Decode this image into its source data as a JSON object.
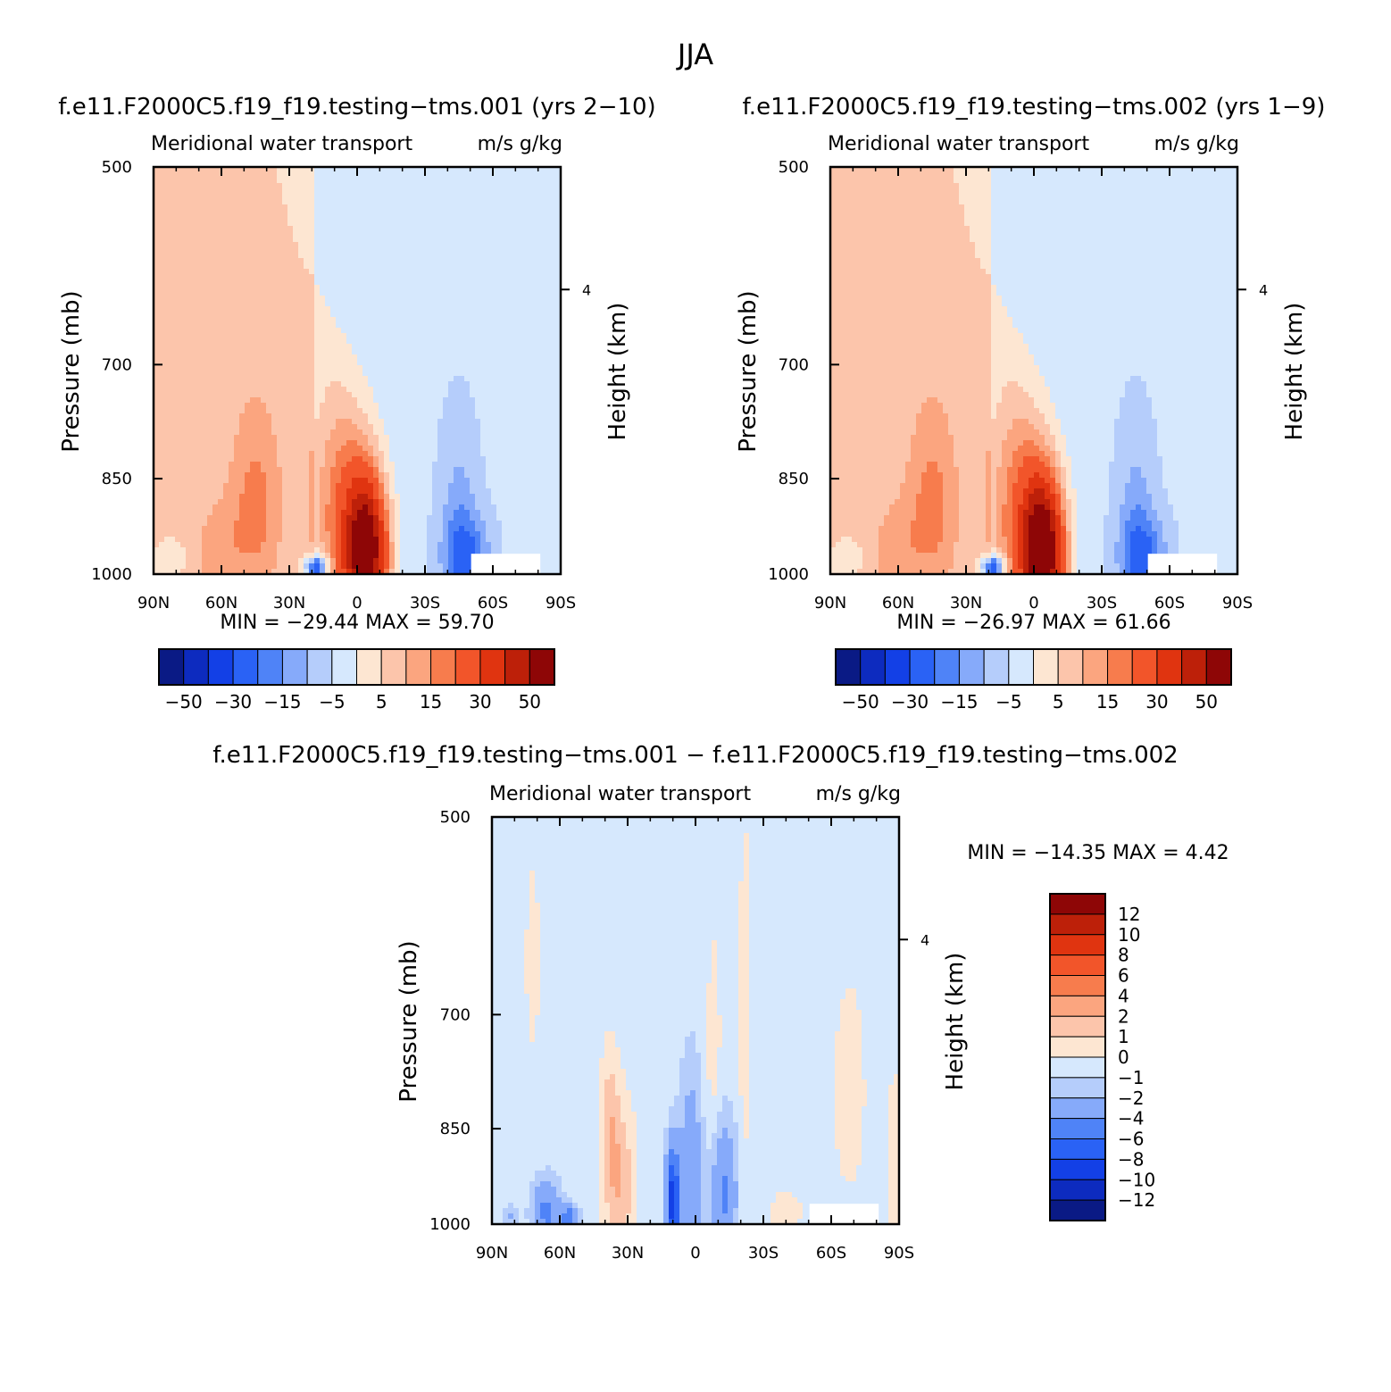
{
  "figure": {
    "title": "JJA"
  },
  "colors": {
    "levels_main": [
      "#0a1a85",
      "#0d2bbf",
      "#1340e6",
      "#2a62f5",
      "#4f83f7",
      "#86aafa",
      "#b5cdfb",
      "#d6e8fd",
      "#fde6d2",
      "#fcc5ab",
      "#fba57f",
      "#f77c4d",
      "#f2552a",
      "#e03410",
      "#bd2009",
      "#8e0606"
    ],
    "levels_diff": [
      "#0a1a85",
      "#0d2bbf",
      "#1340e6",
      "#2a62f5",
      "#4f83f7",
      "#86aafa",
      "#b5cdfb",
      "#d6e8fd",
      "#fde6d2",
      "#fcc5ab",
      "#fba57f",
      "#f77c4d",
      "#f2552a",
      "#e03410",
      "#bd2009",
      "#8e0606"
    ]
  },
  "chart_data": [
    {
      "type": "heatmap",
      "title": "f.e11.F2000C5.f19_f19.testing−tms.001 (yrs 2−10)",
      "subtitle_left": "Meridional water transport",
      "subtitle_right": "m/s g/kg",
      "ylabel": "Pressure (mb)",
      "ylabel_right": "Height (km)",
      "x_ticks": [
        "90N",
        "60N",
        "30N",
        "0",
        "30S",
        "60S",
        "90S"
      ],
      "y_ticks": [
        "500",
        "700",
        "850",
        "1000"
      ],
      "y_right_ticks": [
        "4"
      ],
      "stats": "MIN = −29.44   MAX =   59.70",
      "min": -29.44,
      "max": 59.7,
      "colorbar_labels": [
        "−50",
        "−30",
        "−15",
        "−5",
        "5",
        "15",
        "30",
        "50"
      ]
    },
    {
      "type": "heatmap",
      "title": "f.e11.F2000C5.f19_f19.testing−tms.002 (yrs 1−9)",
      "subtitle_left": "Meridional water transport",
      "subtitle_right": "m/s g/kg",
      "ylabel": "Pressure (mb)",
      "ylabel_right": "Height (km)",
      "x_ticks": [
        "90N",
        "60N",
        "30N",
        "0",
        "30S",
        "60S",
        "90S"
      ],
      "y_ticks": [
        "500",
        "700",
        "850",
        "1000"
      ],
      "y_right_ticks": [
        "4"
      ],
      "stats": "MIN = −26.97   MAX =   61.66",
      "min": -26.97,
      "max": 61.66,
      "colorbar_labels": [
        "−50",
        "−30",
        "−15",
        "−5",
        "5",
        "15",
        "30",
        "50"
      ]
    },
    {
      "type": "heatmap",
      "title": "f.e11.F2000C5.f19_f19.testing−tms.001 − f.e11.F2000C5.f19_f19.testing−tms.002",
      "subtitle_left": "Meridional water transport",
      "subtitle_right": "m/s g/kg",
      "ylabel": "Pressure (mb)",
      "ylabel_right": "Height (km)",
      "x_ticks": [
        "90N",
        "60N",
        "30N",
        "0",
        "30S",
        "60S",
        "90S"
      ],
      "y_ticks": [
        "500",
        "700",
        "850",
        "1000"
      ],
      "y_right_ticks": [
        "4"
      ],
      "stats": "MIN = −14.35   MAX =    4.42",
      "min": -14.35,
      "max": 4.42,
      "colorbar_labels": [
        "12",
        "10",
        "8",
        "6",
        "4",
        "2",
        "1",
        "0",
        "−1",
        "−2",
        "−4",
        "−6",
        "−8",
        "−10",
        "−12"
      ]
    }
  ]
}
